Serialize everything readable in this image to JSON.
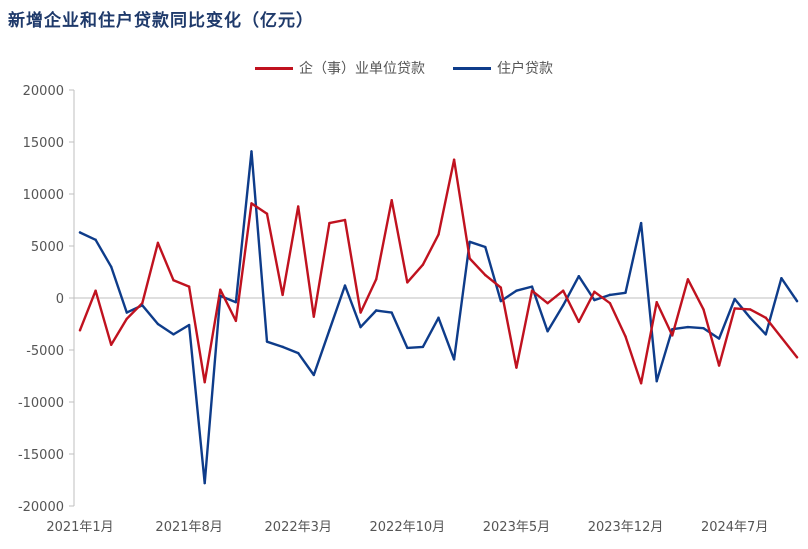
{
  "title": "新增企业和住户贷款同比变化（亿元）",
  "colors": {
    "enterprise": "#c0121f",
    "household": "#0e3c8a",
    "axis": "#bfbfbf",
    "text": "#555555"
  },
  "chart_data": {
    "type": "line",
    "title": "新增企业和住户贷款同比变化（亿元）",
    "xlabel": "",
    "ylabel": "",
    "ylim": [
      -20000,
      20000
    ],
    "yticks": [
      20000,
      15000,
      10000,
      5000,
      0,
      -5000,
      -10000,
      -15000,
      -20000
    ],
    "grid": false,
    "legend_position": "top-center",
    "x": [
      "2021-01",
      "2021-02",
      "2021-03",
      "2021-04",
      "2021-05",
      "2021-06",
      "2021-07",
      "2021-08",
      "2021-09",
      "2021-10",
      "2021-11",
      "2021-12",
      "2022-01",
      "2022-02",
      "2022-03",
      "2022-04",
      "2022-05",
      "2022-06",
      "2022-07",
      "2022-08",
      "2022-09",
      "2022-10",
      "2022-11",
      "2022-12",
      "2023-01",
      "2023-02",
      "2023-03",
      "2023-04",
      "2023-05",
      "2023-06",
      "2023-07",
      "2023-08",
      "2023-09",
      "2023-10",
      "2023-11",
      "2023-12",
      "2024-01",
      "2024-02",
      "2024-03",
      "2024-04",
      "2024-05",
      "2024-06",
      "2024-07",
      "2024-08",
      "2024-09",
      "2024-10",
      "2024-11"
    ],
    "xtick_labels": [
      {
        "index": 0,
        "label": "2021年1月"
      },
      {
        "index": 7,
        "label": "2021年8月"
      },
      {
        "index": 14,
        "label": "2022年3月"
      },
      {
        "index": 21,
        "label": "2022年10月"
      },
      {
        "index": 28,
        "label": "2023年5月"
      },
      {
        "index": 35,
        "label": "2023年12月"
      },
      {
        "index": 42,
        "label": "2024年7月"
      }
    ],
    "series": [
      {
        "name": "企（事）业单位贷款",
        "color": "#c0121f",
        "values": [
          -3100,
          700,
          -4500,
          -2000,
          -500,
          5300,
          1700,
          1100,
          -8100,
          800,
          -2200,
          9100,
          8100,
          300,
          8800,
          -1800,
          7200,
          7500,
          -1400,
          1800,
          9400,
          1500,
          3200,
          6100,
          13300,
          3800,
          2200,
          1000,
          -6700,
          700,
          -500,
          700,
          -2300,
          600,
          -500,
          -3700,
          -8200,
          -400,
          -3600,
          1800,
          -1100,
          -6500,
          -1000,
          -1100,
          -1900,
          -3800,
          -5700
        ]
      },
      {
        "name": "住户贷款",
        "color": "#0e3c8a",
        "values": [
          6300,
          5600,
          3000,
          -1400,
          -700,
          -2500,
          -3500,
          -2600,
          -17800,
          200,
          -400,
          14100,
          -4200,
          -4700,
          -5300,
          -7400,
          -3100,
          1200,
          -2800,
          -1200,
          -1400,
          -4800,
          -4700,
          -1900,
          -5900,
          5400,
          4900,
          -300,
          700,
          1100,
          -3200,
          -700,
          2100,
          -200,
          300,
          500,
          7200,
          -8000,
          -3000,
          -2800,
          -2900,
          -3900,
          -100,
          -1900,
          -3500,
          1900,
          -300
        ]
      }
    ]
  }
}
